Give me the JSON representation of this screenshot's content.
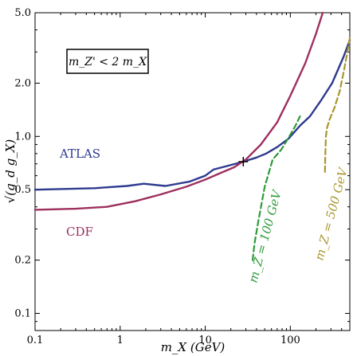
{
  "chart_data": {
    "type": "line",
    "title": "",
    "xlabel": "m_X (GeV)",
    "ylabel": "√(g_d g_X)",
    "xscale": "log",
    "yscale": "log",
    "xlim": [
      0.1,
      500
    ],
    "ylim": [
      0.08,
      5.0
    ],
    "x_ticks": [
      0.1,
      1,
      10,
      100
    ],
    "x_tick_labels": [
      "0.1",
      "1",
      "10",
      "100"
    ],
    "y_ticks": [
      0.1,
      0.2,
      0.5,
      1.0,
      2.0,
      5.0
    ],
    "y_tick_labels": [
      "0.1",
      "0.2",
      "0.5",
      "1.0",
      "2.0",
      "5.0"
    ],
    "grid": false,
    "annotation_box": "m_Z' < 2 m_X",
    "marker": {
      "x": 28,
      "y": 0.72,
      "symbol": "+"
    },
    "series": [
      {
        "name": "ATLAS",
        "color": "#2e3a8f",
        "style": "solid",
        "x": [
          0.1,
          0.5,
          1.2,
          1.9,
          3.4,
          6.5,
          10,
          12.5,
          18,
          28,
          40,
          52,
          70,
          95,
          130,
          170,
          230,
          310,
          420,
          500
        ],
        "y": [
          0.5,
          0.51,
          0.525,
          0.54,
          0.525,
          0.555,
          0.6,
          0.65,
          0.68,
          0.72,
          0.76,
          0.8,
          0.87,
          0.97,
          1.15,
          1.3,
          1.6,
          2.0,
          2.8,
          3.5
        ]
      },
      {
        "name": "CDF",
        "color": "#9e2f5e",
        "style": "solid",
        "x": [
          0.1,
          0.3,
          0.7,
          1.5,
          3,
          6,
          10,
          15,
          22,
          30,
          45,
          70,
          100,
          150,
          200,
          240
        ],
        "y": [
          0.385,
          0.39,
          0.4,
          0.43,
          0.47,
          0.52,
          0.57,
          0.62,
          0.67,
          0.74,
          0.9,
          1.2,
          1.7,
          2.6,
          3.8,
          5.0
        ]
      },
      {
        "name": "m_Z = 100 GeV",
        "color": "#2f9a3a",
        "style": "dashed",
        "x": [
          36,
          38,
          42,
          50,
          62,
          78,
          95,
          115,
          130
        ],
        "y": [
          0.2,
          0.25,
          0.33,
          0.52,
          0.74,
          0.84,
          0.98,
          1.15,
          1.3
        ]
      },
      {
        "name": "m_Z = 500 GeV",
        "color": "#a8962e",
        "style": "dashed",
        "x": [
          255,
          258,
          262,
          270,
          290,
          330,
          380,
          430,
          480,
          500
        ],
        "y": [
          0.63,
          0.8,
          1.0,
          1.12,
          1.25,
          1.45,
          1.8,
          2.4,
          3.2,
          3.6
        ]
      }
    ],
    "labels": {
      "atlas": "ATLAS",
      "cdf": "CDF",
      "mz100": "m_Z = 100 GeV",
      "mz500": "m_Z = 500 GeV"
    }
  }
}
